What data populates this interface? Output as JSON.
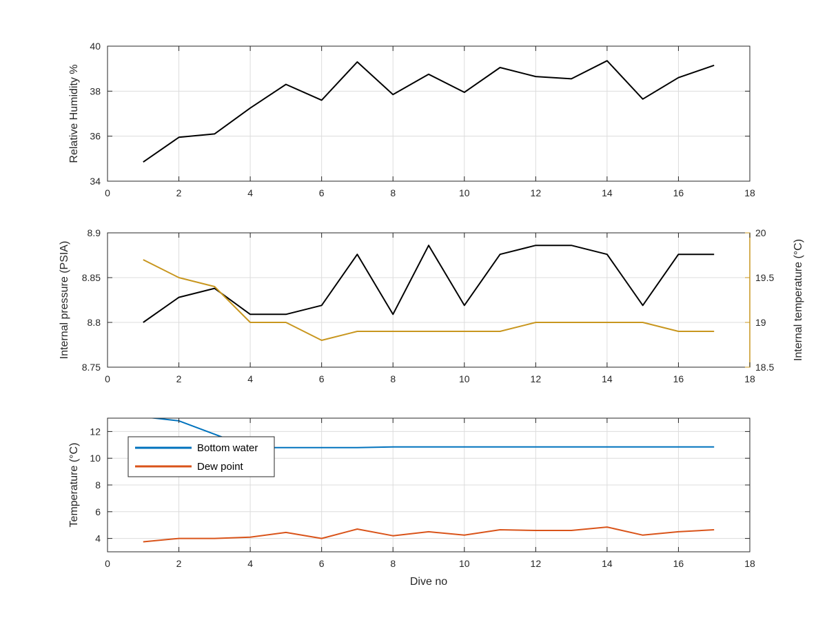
{
  "colors": {
    "black": "#000000",
    "gold": "#C8961E",
    "blue": "#0072BD",
    "orange": "#D95319",
    "grid": "#DCDCDC",
    "axis": "#262626"
  },
  "chart_data": [
    {
      "type": "line",
      "xlabel": "",
      "ylabel": "Relative Humidity %",
      "xlim": [
        0,
        18
      ],
      "ylim": [
        34,
        40
      ],
      "xticks": [
        0,
        2,
        4,
        6,
        8,
        10,
        12,
        14,
        16,
        18
      ],
      "yticks": [
        34,
        36,
        38,
        40
      ],
      "grid": true,
      "series": [
        {
          "color": "#000000",
          "x": [
            1,
            2,
            3,
            4,
            5,
            6,
            7,
            8,
            9,
            10,
            11,
            12,
            13,
            14,
            15,
            16,
            17
          ],
          "y": [
            34.85,
            35.95,
            36.1,
            37.25,
            38.3,
            37.6,
            39.3,
            37.85,
            38.75,
            37.95,
            39.05,
            38.65,
            38.55,
            39.35,
            37.65,
            38.6,
            39.15
          ]
        }
      ]
    },
    {
      "type": "line",
      "xlabel": "",
      "ylabel": "Internal pressure (PSIA)",
      "ylabel_right": "Internal temperature (°C)",
      "xlim": [
        0,
        18
      ],
      "ylim": [
        8.75,
        8.9
      ],
      "ylim_right": [
        18.5,
        20
      ],
      "xticks": [
        0,
        2,
        4,
        6,
        8,
        10,
        12,
        14,
        16,
        18
      ],
      "yticks": [
        "8.75",
        "8.8",
        "8.85",
        "8.9"
      ],
      "yticks_right": [
        "18.5",
        "19",
        "19.5",
        "20"
      ],
      "grid": true,
      "series": [
        {
          "color": "#000000",
          "axis": "left",
          "x": [
            1,
            2,
            3,
            4,
            5,
            6,
            7,
            8,
            9,
            10,
            11,
            12,
            13,
            14,
            15,
            16,
            17
          ],
          "y": [
            8.8,
            8.828,
            8.838,
            8.809,
            8.809,
            8.819,
            8.876,
            8.809,
            8.886,
            8.819,
            8.876,
            8.886,
            8.886,
            8.876,
            8.819,
            8.876,
            8.876
          ]
        },
        {
          "color": "#C8961E",
          "axis": "right",
          "x": [
            1,
            2,
            3,
            4,
            5,
            6,
            7,
            8,
            9,
            10,
            11,
            12,
            13,
            14,
            15,
            16,
            17
          ],
          "y": [
            19.7,
            19.5,
            19.4,
            19.0,
            19.0,
            18.8,
            18.9,
            18.9,
            18.9,
            18.9,
            18.9,
            19.0,
            19.0,
            19.0,
            19.0,
            18.9,
            18.9
          ]
        }
      ]
    },
    {
      "type": "line",
      "xlabel": "Dive no",
      "ylabel": "Temperature (°C)",
      "xlim": [
        0,
        18
      ],
      "ylim": [
        3,
        13
      ],
      "xticks": [
        0,
        2,
        4,
        6,
        8,
        10,
        12,
        14,
        16,
        18
      ],
      "yticks": [
        4,
        6,
        8,
        10,
        12
      ],
      "grid": true,
      "legend_position": "top-left",
      "series": [
        {
          "name": "Bottom water",
          "color": "#0072BD",
          "x": [
            1,
            2,
            3,
            4,
            5,
            6,
            7,
            8,
            9,
            10,
            11,
            12,
            13,
            14,
            15,
            16,
            17
          ],
          "y": [
            13.1,
            12.8,
            11.8,
            10.8,
            10.8,
            10.8,
            10.8,
            10.85,
            10.85,
            10.85,
            10.85,
            10.85,
            10.85,
            10.85,
            10.85,
            10.85,
            10.85
          ]
        },
        {
          "name": "Dew point",
          "color": "#D95319",
          "x": [
            1,
            2,
            3,
            4,
            5,
            6,
            7,
            8,
            9,
            10,
            11,
            12,
            13,
            14,
            15,
            16,
            17
          ],
          "y": [
            3.75,
            4.0,
            4.0,
            4.1,
            4.45,
            4.0,
            4.7,
            4.2,
            4.5,
            4.25,
            4.65,
            4.6,
            4.6,
            4.85,
            4.25,
            4.5,
            4.65
          ]
        }
      ]
    }
  ]
}
